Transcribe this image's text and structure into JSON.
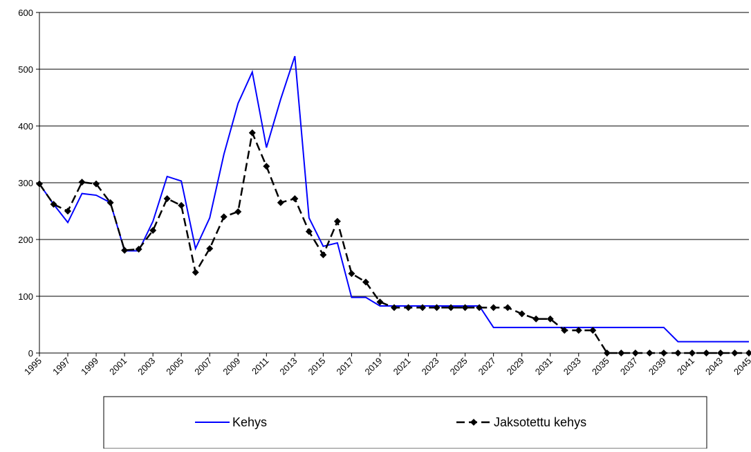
{
  "chart_data": {
    "type": "line",
    "x": [
      1995,
      1996,
      1997,
      1998,
      1999,
      2000,
      2001,
      2002,
      2003,
      2004,
      2005,
      2006,
      2007,
      2008,
      2009,
      2010,
      2011,
      2012,
      2013,
      2014,
      2015,
      2016,
      2017,
      2018,
      2019,
      2020,
      2021,
      2022,
      2023,
      2024,
      2025,
      2026,
      2027,
      2028,
      2029,
      2030,
      2031,
      2032,
      2033,
      2034,
      2035,
      2036,
      2037,
      2038,
      2039,
      2040,
      2041,
      2042,
      2043,
      2044,
      2045
    ],
    "xlim": [
      1995,
      2045
    ],
    "xticks": [
      1995,
      1997,
      1999,
      2001,
      2003,
      2005,
      2007,
      2009,
      2011,
      2013,
      2015,
      2017,
      2019,
      2021,
      2023,
      2025,
      2027,
      2029,
      2031,
      2033,
      2035,
      2037,
      2039,
      2041,
      2043,
      2045
    ],
    "ylim": [
      0,
      600
    ],
    "yticks": [
      0,
      100,
      200,
      300,
      400,
      500,
      600
    ],
    "grid": true,
    "legend": "bottom",
    "series": [
      {
        "name": "Kehys",
        "color": "#0000ff",
        "values": [
          298,
          262,
          230,
          281,
          278,
          265,
          180,
          180,
          232,
          311,
          303,
          184,
          238,
          350,
          440,
          495,
          362,
          447,
          523,
          238,
          188,
          194,
          98,
          98,
          83,
          83,
          83,
          83,
          83,
          83,
          83,
          83,
          45,
          45,
          45,
          45,
          45,
          45,
          45,
          45,
          45,
          45,
          45,
          45,
          45,
          20,
          20,
          20,
          20,
          20,
          20
        ]
      },
      {
        "name": "Jaksotettu kehys",
        "color": "#000000",
        "values": [
          298,
          262,
          250,
          301,
          298,
          265,
          181,
          183,
          216,
          272,
          260,
          142,
          184,
          240,
          249,
          388,
          329,
          265,
          272,
          214,
          173,
          232,
          140,
          125,
          90,
          80,
          80,
          80,
          80,
          80,
          80,
          80,
          80,
          80,
          69,
          60,
          60,
          40,
          40,
          40,
          0,
          0,
          0,
          0,
          0,
          0,
          0,
          0,
          0,
          0,
          0
        ]
      }
    ]
  }
}
